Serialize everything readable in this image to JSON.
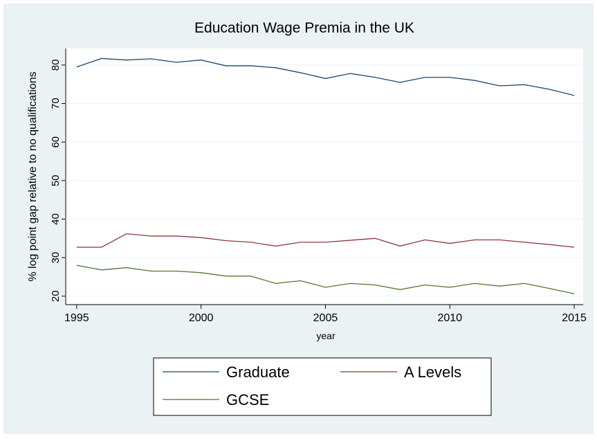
{
  "chart_data": {
    "type": "line",
    "title": "Education Wage Premia in the UK",
    "x_label": "year",
    "y_label": "% log point gap relative to no qualifications",
    "x": [
      1995,
      1996,
      1997,
      1998,
      1999,
      2000,
      2001,
      2002,
      2003,
      2004,
      2005,
      2006,
      2007,
      2008,
      2009,
      2010,
      2011,
      2012,
      2013,
      2014,
      2015
    ],
    "series": [
      {
        "name": "Graduate",
        "color": "#1a476f",
        "values": [
          79.5,
          81.7,
          81.3,
          81.6,
          80.7,
          81.3,
          79.8,
          79.8,
          79.3,
          78.0,
          76.5,
          77.8,
          76.8,
          75.5,
          76.8,
          76.8,
          76.0,
          74.6,
          74.9,
          73.7,
          72.1
        ]
      },
      {
        "name": "A Levels",
        "color": "#90353b",
        "values": [
          32.7,
          32.7,
          36.2,
          35.6,
          35.6,
          35.2,
          34.4,
          34.0,
          33.0,
          34.0,
          34.0,
          34.5,
          35.0,
          33.0,
          34.6,
          33.7,
          34.6,
          34.6,
          34.0,
          33.4,
          32.7
        ]
      },
      {
        "name": "GCSE",
        "color": "#55752f",
        "values": [
          28.0,
          26.8,
          27.4,
          26.5,
          26.5,
          26.1,
          25.2,
          25.2,
          23.3,
          24.0,
          22.3,
          23.3,
          22.9,
          21.7,
          22.9,
          22.3,
          23.3,
          22.6,
          23.3,
          22.0,
          20.6
        ]
      }
    ],
    "xlim": [
      1994.56,
      2015.36
    ],
    "xticks": [
      1995,
      2000,
      2005,
      2010,
      2015
    ],
    "ylim": [
      17.8,
      84.3
    ],
    "yticks": [
      20,
      30,
      40,
      50,
      60,
      70,
      80
    ],
    "grid": true,
    "legend": "bottom"
  }
}
